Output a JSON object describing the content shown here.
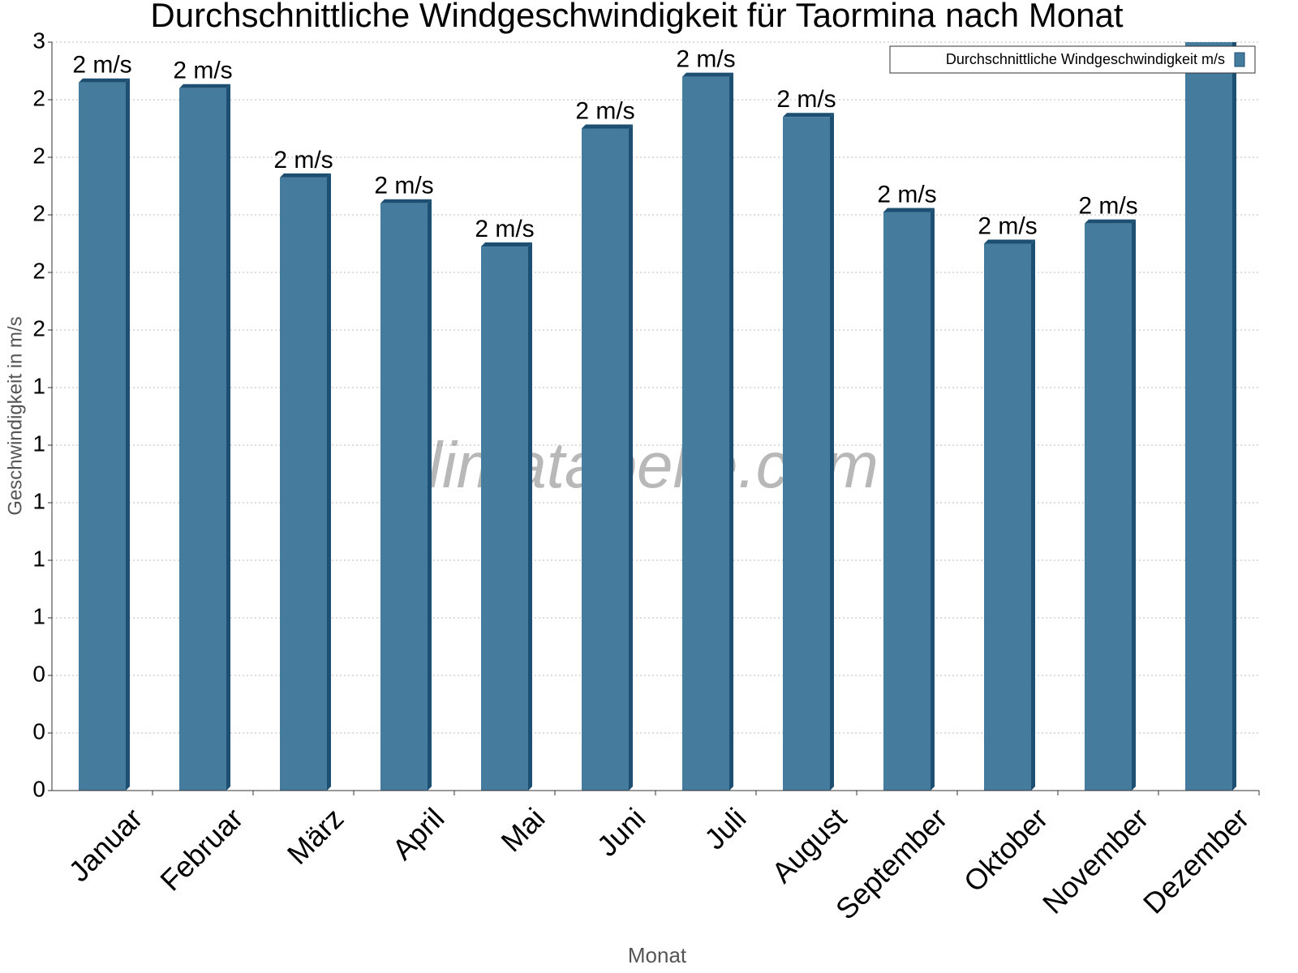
{
  "chart_data": {
    "type": "bar",
    "title": "Durchschnittliche Windgeschwindigkeit für Taormina nach Monat",
    "x_label": "Monat",
    "y_label": "Geschwindigkeit in m/s",
    "watermark": "klimatabelle.com",
    "categories": [
      "Januar",
      "Februar",
      "März",
      "April",
      "Mai",
      "Juni",
      "Juli",
      "August",
      "September",
      "Oktober",
      "November",
      "Dezember"
    ],
    "series": [
      {
        "name": "Durchschnittliche Windgeschwindigkeit m/s",
        "color": "#457b9d",
        "values": [
          2.46,
          2.44,
          2.13,
          2.04,
          1.89,
          2.3,
          2.48,
          2.34,
          2.01,
          1.9,
          1.97,
          2.7
        ],
        "value_labels": [
          "2 m/s",
          "2 m/s",
          "2 m/s",
          "2 m/s",
          "2 m/s",
          "2 m/s",
          "2 m/s",
          "2 m/s",
          "2 m/s",
          "2 m/s",
          "2 m/s",
          null
        ]
      }
    ],
    "ylim": [
      0,
      2.6
    ],
    "yticks": [
      0,
      {
        "value": 0.2,
        "label": "0"
      },
      {
        "value": 0.4,
        "label": "0"
      },
      {
        "value": 0.6,
        "label": "1"
      },
      {
        "value": 0.8,
        "label": "1"
      },
      1,
      {
        "value": 1.2,
        "label": "1"
      },
      {
        "value": 1.4,
        "label": "1"
      },
      {
        "value": 1.6,
        "label": "2"
      },
      {
        "value": 1.8,
        "label": "2"
      },
      2,
      {
        "value": 2.2,
        "label": "2"
      },
      {
        "value": 2.4,
        "label": "2"
      },
      {
        "value": 2.6,
        "label": "3"
      }
    ],
    "grid": true,
    "legend": "top-right"
  }
}
